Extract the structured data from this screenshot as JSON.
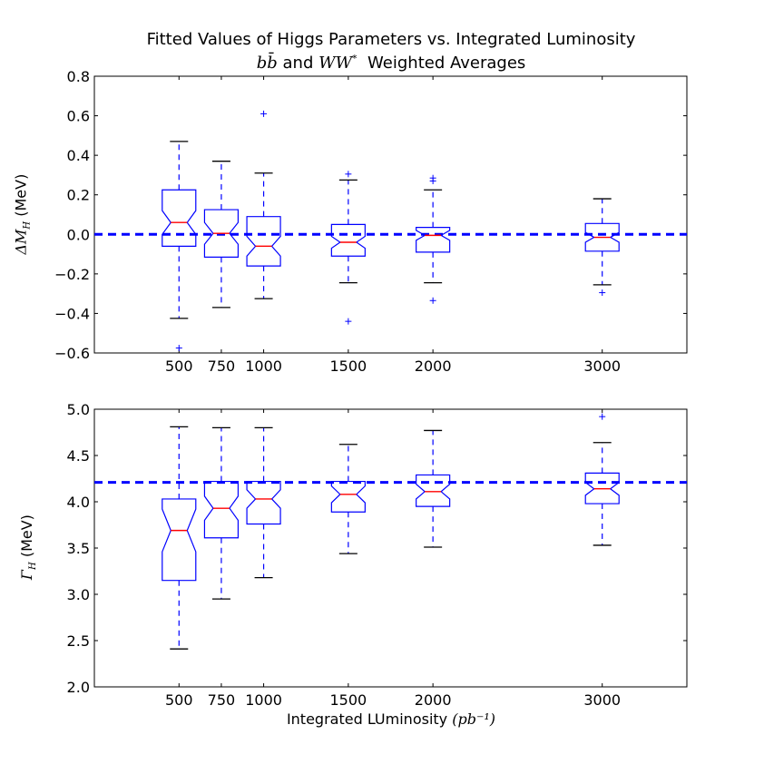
{
  "title": {
    "line1": "Fitted Values of Higgs Parameters vs. Integrated Luminosity",
    "line2_math": "bb̄ and WW* Weighted Averages",
    "line2_parts": [
      "b",
      "b̄",
      " and ",
      "WW",
      "*",
      "  Weighted Averages"
    ]
  },
  "xlabel": {
    "text": "Integrated LUminosity",
    "unit": "(pb⁻¹)"
  },
  "colors": {
    "box": "#0000ff",
    "median": "#ff0000",
    "whisker_cap": "#000000",
    "reference": "#0000ff",
    "flier": "#0000ff"
  },
  "chart_data": [
    {
      "type": "box",
      "ylabel": {
        "symbol": "ΔM",
        "sub": "H",
        "unit": "(MeV)"
      },
      "xlim": [
        0,
        3500
      ],
      "ylim": [
        -0.6,
        0.8
      ],
      "yticks": [
        -0.6,
        -0.4,
        -0.2,
        0.0,
        0.2,
        0.4,
        0.6,
        0.8
      ],
      "ytick_labels": [
        "−0.6",
        "−0.4",
        "−0.2",
        "0.0",
        "0.2",
        "0.4",
        "0.6",
        "0.8"
      ],
      "xticks": [
        500,
        750,
        1000,
        1500,
        2000,
        3000
      ],
      "xtick_labels": [
        "500",
        "750",
        "1000",
        "1500",
        "2000",
        "3000"
      ],
      "reference_line": 0.0,
      "grid": false,
      "boxes": [
        {
          "x": 500,
          "q1": -0.06,
          "median": 0.06,
          "q3": 0.225,
          "whisker_low": -0.425,
          "whisker_high": 0.47,
          "notch_low": 0.0,
          "notch_high": 0.12,
          "fliers": [
            -0.575
          ]
        },
        {
          "x": 750,
          "q1": -0.115,
          "median": 0.005,
          "q3": 0.125,
          "whisker_low": -0.37,
          "whisker_high": 0.37,
          "notch_low": -0.05,
          "notch_high": 0.06,
          "fliers": []
        },
        {
          "x": 1000,
          "q1": -0.16,
          "median": -0.06,
          "q3": 0.09,
          "whisker_low": -0.325,
          "whisker_high": 0.31,
          "notch_low": -0.11,
          "notch_high": -0.01,
          "fliers": [
            0.61
          ]
        },
        {
          "x": 1500,
          "q1": -0.11,
          "median": -0.04,
          "q3": 0.05,
          "whisker_low": -0.245,
          "whisker_high": 0.275,
          "notch_low": -0.07,
          "notch_high": -0.01,
          "fliers": [
            0.305,
            -0.44
          ]
        },
        {
          "x": 2000,
          "q1": -0.09,
          "median": -0.005,
          "q3": 0.035,
          "whisker_low": -0.245,
          "whisker_high": 0.225,
          "notch_low": -0.03,
          "notch_high": 0.02,
          "fliers": [
            0.27,
            0.285,
            -0.335
          ]
        },
        {
          "x": 3000,
          "q1": -0.085,
          "median": -0.015,
          "q3": 0.055,
          "whisker_low": -0.255,
          "whisker_high": 0.18,
          "notch_low": -0.04,
          "notch_high": 0.01,
          "fliers": [
            -0.295
          ]
        }
      ]
    },
    {
      "type": "box",
      "ylabel": {
        "symbol": "Γ",
        "sub": "H",
        "unit": "(MeV)"
      },
      "xlim": [
        0,
        3500
      ],
      "ylim": [
        2.0,
        5.0
      ],
      "yticks": [
        2.0,
        2.5,
        3.0,
        3.5,
        4.0,
        4.5,
        5.0
      ],
      "ytick_labels": [
        "2.0",
        "2.5",
        "3.0",
        "3.5",
        "4.0",
        "4.5",
        "5.0"
      ],
      "xticks": [
        500,
        750,
        1000,
        1500,
        2000,
        3000
      ],
      "xtick_labels": [
        "500",
        "750",
        "1000",
        "1500",
        "2000",
        "3000"
      ],
      "reference_line": 4.21,
      "grid": false,
      "boxes": [
        {
          "x": 500,
          "q1": 3.15,
          "median": 3.69,
          "q3": 4.03,
          "whisker_low": 2.41,
          "whisker_high": 4.81,
          "notch_low": 3.46,
          "notch_high": 3.92,
          "fliers": []
        },
        {
          "x": 750,
          "q1": 3.61,
          "median": 3.93,
          "q3": 4.22,
          "whisker_low": 2.95,
          "whisker_high": 4.8,
          "notch_low": 3.8,
          "notch_high": 4.06,
          "fliers": []
        },
        {
          "x": 1000,
          "q1": 3.76,
          "median": 4.03,
          "q3": 4.22,
          "whisker_low": 3.18,
          "whisker_high": 4.8,
          "notch_low": 3.93,
          "notch_high": 4.13,
          "fliers": []
        },
        {
          "x": 1500,
          "q1": 3.89,
          "median": 4.08,
          "q3": 4.22,
          "whisker_low": 3.44,
          "whisker_high": 4.62,
          "notch_low": 3.99,
          "notch_high": 4.17,
          "fliers": []
        },
        {
          "x": 2000,
          "q1": 3.95,
          "median": 4.11,
          "q3": 4.29,
          "whisker_low": 3.51,
          "whisker_high": 4.77,
          "notch_low": 4.03,
          "notch_high": 4.19,
          "fliers": []
        },
        {
          "x": 3000,
          "q1": 3.98,
          "median": 4.14,
          "q3": 4.31,
          "whisker_low": 3.53,
          "whisker_high": 4.64,
          "notch_low": 4.07,
          "notch_high": 4.21,
          "fliers": [
            4.92
          ]
        }
      ]
    }
  ]
}
